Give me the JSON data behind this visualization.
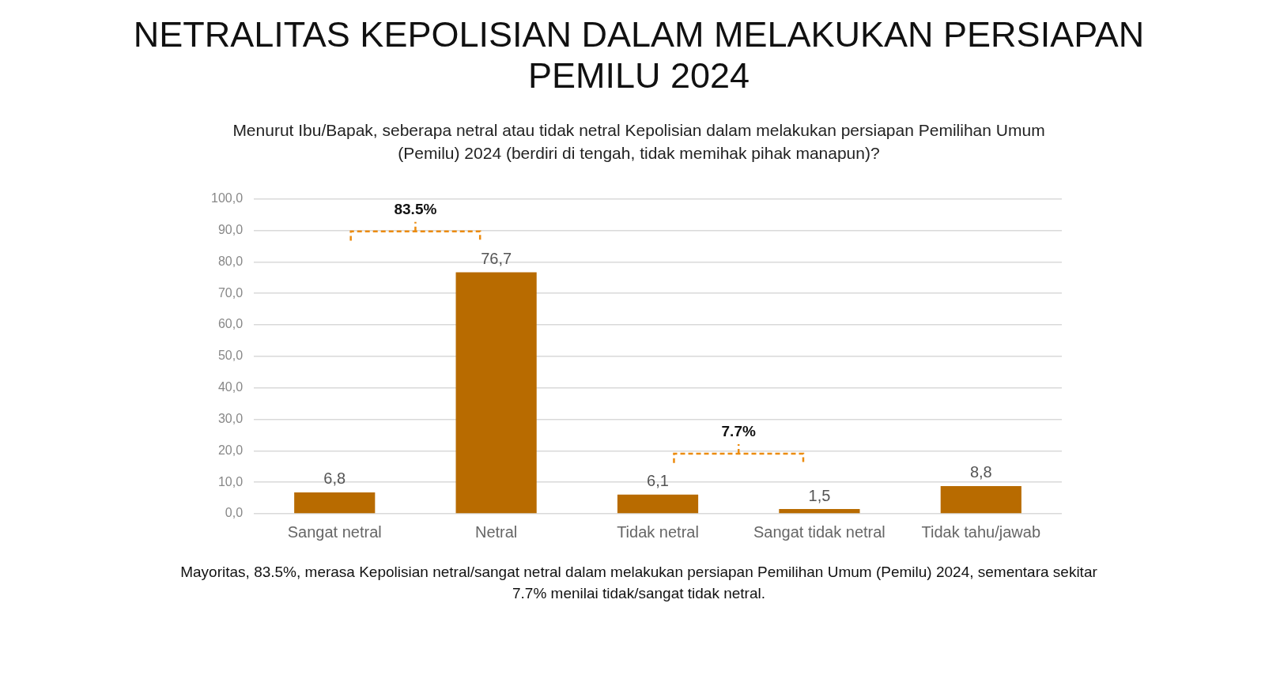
{
  "chart_data": {
    "type": "bar",
    "title": "NETRALITAS KEPOLISIAN DALAM MELAKUKAN PERSIAPAN PEMILU 2024",
    "subtitle": "Menurut Ibu/Bapak, seberapa netral atau tidak netral Kepolisian dalam melakukan persiapan Pemilihan Umum (Pemilu) 2024 (berdiri di tengah, tidak memihak pihak manapun)?",
    "categories": [
      "Sangat netral",
      "Netral",
      "Tidak netral",
      "Sangat tidak netral",
      "Tidak tahu/jawab"
    ],
    "values": [
      6.8,
      76.7,
      6.1,
      1.5,
      8.8
    ],
    "value_labels": [
      "6,8",
      "76,7",
      "6,1",
      "1,5",
      "8,8"
    ],
    "color": "#b86b00",
    "ylim": [
      0,
      100
    ],
    "yticks": [
      {
        "value": 0,
        "label": "0,0"
      },
      {
        "value": 10,
        "label": "10,0"
      },
      {
        "value": 20,
        "label": "20,0"
      },
      {
        "value": 30,
        "label": "30,0"
      },
      {
        "value": 40,
        "label": "40,0"
      },
      {
        "value": 50,
        "label": "50,0"
      },
      {
        "value": 60,
        "label": "60,0"
      },
      {
        "value": 70,
        "label": "70,0"
      },
      {
        "value": 80,
        "label": "80,0"
      },
      {
        "value": 90,
        "label": "90,0"
      },
      {
        "value": 100,
        "label": "100,0"
      }
    ],
    "grid": "y",
    "legend": false,
    "annotations": [
      "83.5%",
      "7.7%",
      "Mayoritas, 83.5%, merasa Kepolisian netral/sangat netral dalam melakukan persiapan Pemilihan Umum (Pemilu) 2024, sementara sekitar 7.7% menilai tidak/sangat tidak netral."
    ]
  }
}
